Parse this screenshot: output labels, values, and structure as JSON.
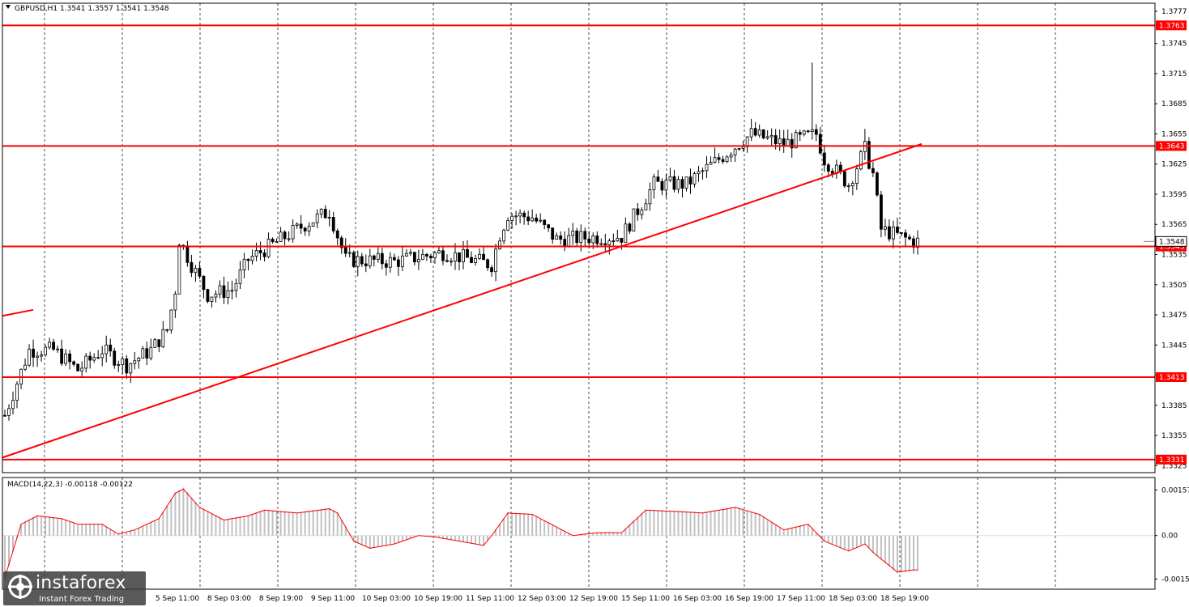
{
  "header": {
    "title": "GBPUSD,H1  1.3541 1.3557 1.3541 1.3548"
  },
  "macd_label": "MACD(14,22,3) -0.00118 -0.00122",
  "watermark": {
    "name": "instaforex",
    "tagline": "Instant Forex Trading"
  },
  "colors": {
    "level": "#ff0000",
    "grid": "#000000",
    "candle": "#000000",
    "hist": "#c0c0c0",
    "signal": "#ff0000"
  },
  "chart_data": {
    "type": "candlestick",
    "symbol": "GBPUSD",
    "timeframe": "H1",
    "ylim": [
      1.3318,
      1.3785
    ],
    "price_ticks": [
      "1.3777",
      "1.3745",
      "1.3715",
      "1.3685",
      "1.3655",
      "1.3625",
      "1.3595",
      "1.3565",
      "1.3535",
      "1.3505",
      "1.3475",
      "1.3445",
      "1.3415",
      "1.3385",
      "1.3355",
      "1.3325"
    ],
    "x_labels": [
      "5 Sep 11:00",
      "8 Sep 03:00",
      "8 Sep 19:00",
      "9 Sep 11:00",
      "10 Sep 03:00",
      "10 Sep 19:00",
      "11 Sep 11:00",
      "12 Sep 03:00",
      "12 Sep 19:00",
      "15 Sep 11:00",
      "16 Sep 03:00",
      "16 Sep 19:00",
      "17 Sep 11:00",
      "18 Sep 03:00",
      "18 Sep 19:00"
    ],
    "levels": [
      {
        "value": 1.3763,
        "label": "1.3763"
      },
      {
        "value": 1.3643,
        "label": "1.3643"
      },
      {
        "value": 1.3543,
        "label": "1.3543"
      },
      {
        "value": 1.3413,
        "label": "1.3413"
      },
      {
        "value": 1.3331,
        "label": "1.3331"
      }
    ],
    "current_price": {
      "value": 1.3548,
      "label": "1.3548"
    },
    "trendline": {
      "from": {
        "bar": 0,
        "price": 1.3333
      },
      "to": {
        "bar": 226,
        "price": 1.3645
      }
    },
    "trendline_short": {
      "from": {
        "bar": 0,
        "price": 1.3474
      },
      "to": {
        "bar": 7,
        "price": 1.348
      }
    },
    "anchors": [
      [
        0,
        1.3375
      ],
      [
        6,
        1.344
      ],
      [
        12,
        1.344
      ],
      [
        18,
        1.342
      ],
      [
        24,
        1.344
      ],
      [
        30,
        1.3425
      ],
      [
        36,
        1.344
      ],
      [
        40,
        1.346
      ],
      [
        42,
        1.35
      ],
      [
        43,
        1.355
      ],
      [
        46,
        1.3525
      ],
      [
        50,
        1.3495
      ],
      [
        56,
        1.35
      ],
      [
        60,
        1.353
      ],
      [
        66,
        1.3545
      ],
      [
        74,
        1.3565
      ],
      [
        80,
        1.3578
      ],
      [
        84,
        1.353
      ],
      [
        96,
        1.3528
      ],
      [
        108,
        1.3537
      ],
      [
        120,
        1.3525
      ],
      [
        122,
        1.3555
      ],
      [
        124,
        1.3575
      ],
      [
        130,
        1.3572
      ],
      [
        136,
        1.355
      ],
      [
        144,
        1.3552
      ],
      [
        152,
        1.3553
      ],
      [
        160,
        1.3605
      ],
      [
        168,
        1.3605
      ],
      [
        176,
        1.363
      ],
      [
        184,
        1.3655
      ],
      [
        192,
        1.3645
      ],
      [
        200,
        1.3655
      ],
      [
        202,
        1.363
      ],
      [
        208,
        1.3605
      ],
      [
        212,
        1.364
      ],
      [
        214,
        1.3615
      ],
      [
        216,
        1.356
      ],
      [
        224,
        1.3548
      ]
    ],
    "spikes": [
      {
        "bar": 199,
        "high": 1.3726
      },
      {
        "bar": 212,
        "high": 1.366
      }
    ],
    "macd": {
      "ylim": [
        -0.00185,
        0.002
      ],
      "ticks": [
        "0.00157",
        "0.00",
        "-0.0015"
      ],
      "anchors": [
        [
          0,
          -0.0015
        ],
        [
          4,
          0.0004
        ],
        [
          8,
          0.0007
        ],
        [
          14,
          0.0006
        ],
        [
          18,
          0.0004
        ],
        [
          24,
          0.0004
        ],
        [
          28,
          5e-05
        ],
        [
          32,
          0.0002
        ],
        [
          38,
          0.0006
        ],
        [
          42,
          0.0015
        ],
        [
          44,
          0.00165
        ],
        [
          48,
          0.001
        ],
        [
          54,
          0.00055
        ],
        [
          60,
          0.0007
        ],
        [
          64,
          0.0009
        ],
        [
          72,
          0.0008
        ],
        [
          80,
          0.00095
        ],
        [
          82,
          0.0008
        ],
        [
          86,
          -0.0002
        ],
        [
          90,
          -0.00045
        ],
        [
          96,
          -0.0003
        ],
        [
          102,
          0.0
        ],
        [
          106,
          -5e-05
        ],
        [
          112,
          -0.0002
        ],
        [
          118,
          -0.00035
        ],
        [
          120,
          0.0
        ],
        [
          124,
          0.0008
        ],
        [
          130,
          0.00075
        ],
        [
          140,
          0.0
        ],
        [
          146,
          0.0001
        ],
        [
          152,
          0.0001
        ],
        [
          158,
          0.0009
        ],
        [
          166,
          0.00085
        ],
        [
          172,
          0.0008
        ],
        [
          180,
          0.001
        ],
        [
          186,
          0.00075
        ],
        [
          192,
          0.0002
        ],
        [
          198,
          0.0004
        ],
        [
          202,
          -0.0002
        ],
        [
          208,
          -0.00055
        ],
        [
          212,
          -0.0003
        ],
        [
          214,
          -0.0006
        ],
        [
          220,
          -0.0013
        ],
        [
          224,
          -0.00122
        ]
      ]
    }
  }
}
